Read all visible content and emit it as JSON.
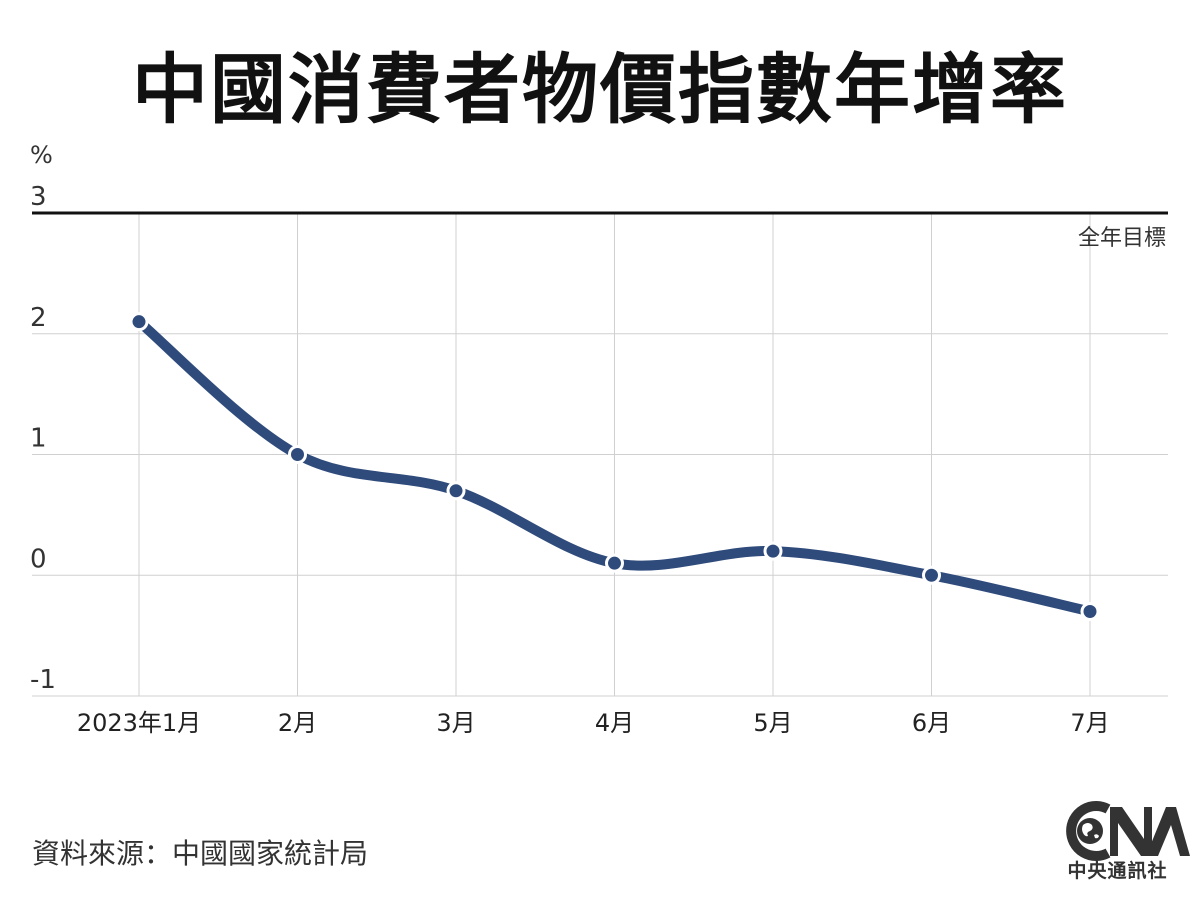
{
  "title": "中國消費者物價指數年增率",
  "source": "資料來源：中國國家統計局",
  "logo": {
    "text": "中央通訊社"
  },
  "colors": {
    "line": "#2f4b7c",
    "target": "#111111",
    "grid": "#d0d0d0"
  },
  "chart_data": {
    "type": "line",
    "title": "中國消費者物價指數年增率",
    "ylabel": "%",
    "ylim": [
      -1,
      3
    ],
    "yticks": [
      "3",
      "2",
      "1",
      "0",
      "-1"
    ],
    "categories": [
      "2023年1月",
      "2月",
      "3月",
      "4月",
      "5月",
      "6月",
      "7月"
    ],
    "series": [
      {
        "values": [
          2.1,
          1.0,
          0.7,
          0.1,
          0.2,
          0.0,
          -0.3
        ]
      }
    ],
    "reference_line": {
      "value": 3,
      "label": "全年目標"
    },
    "grid": true
  }
}
